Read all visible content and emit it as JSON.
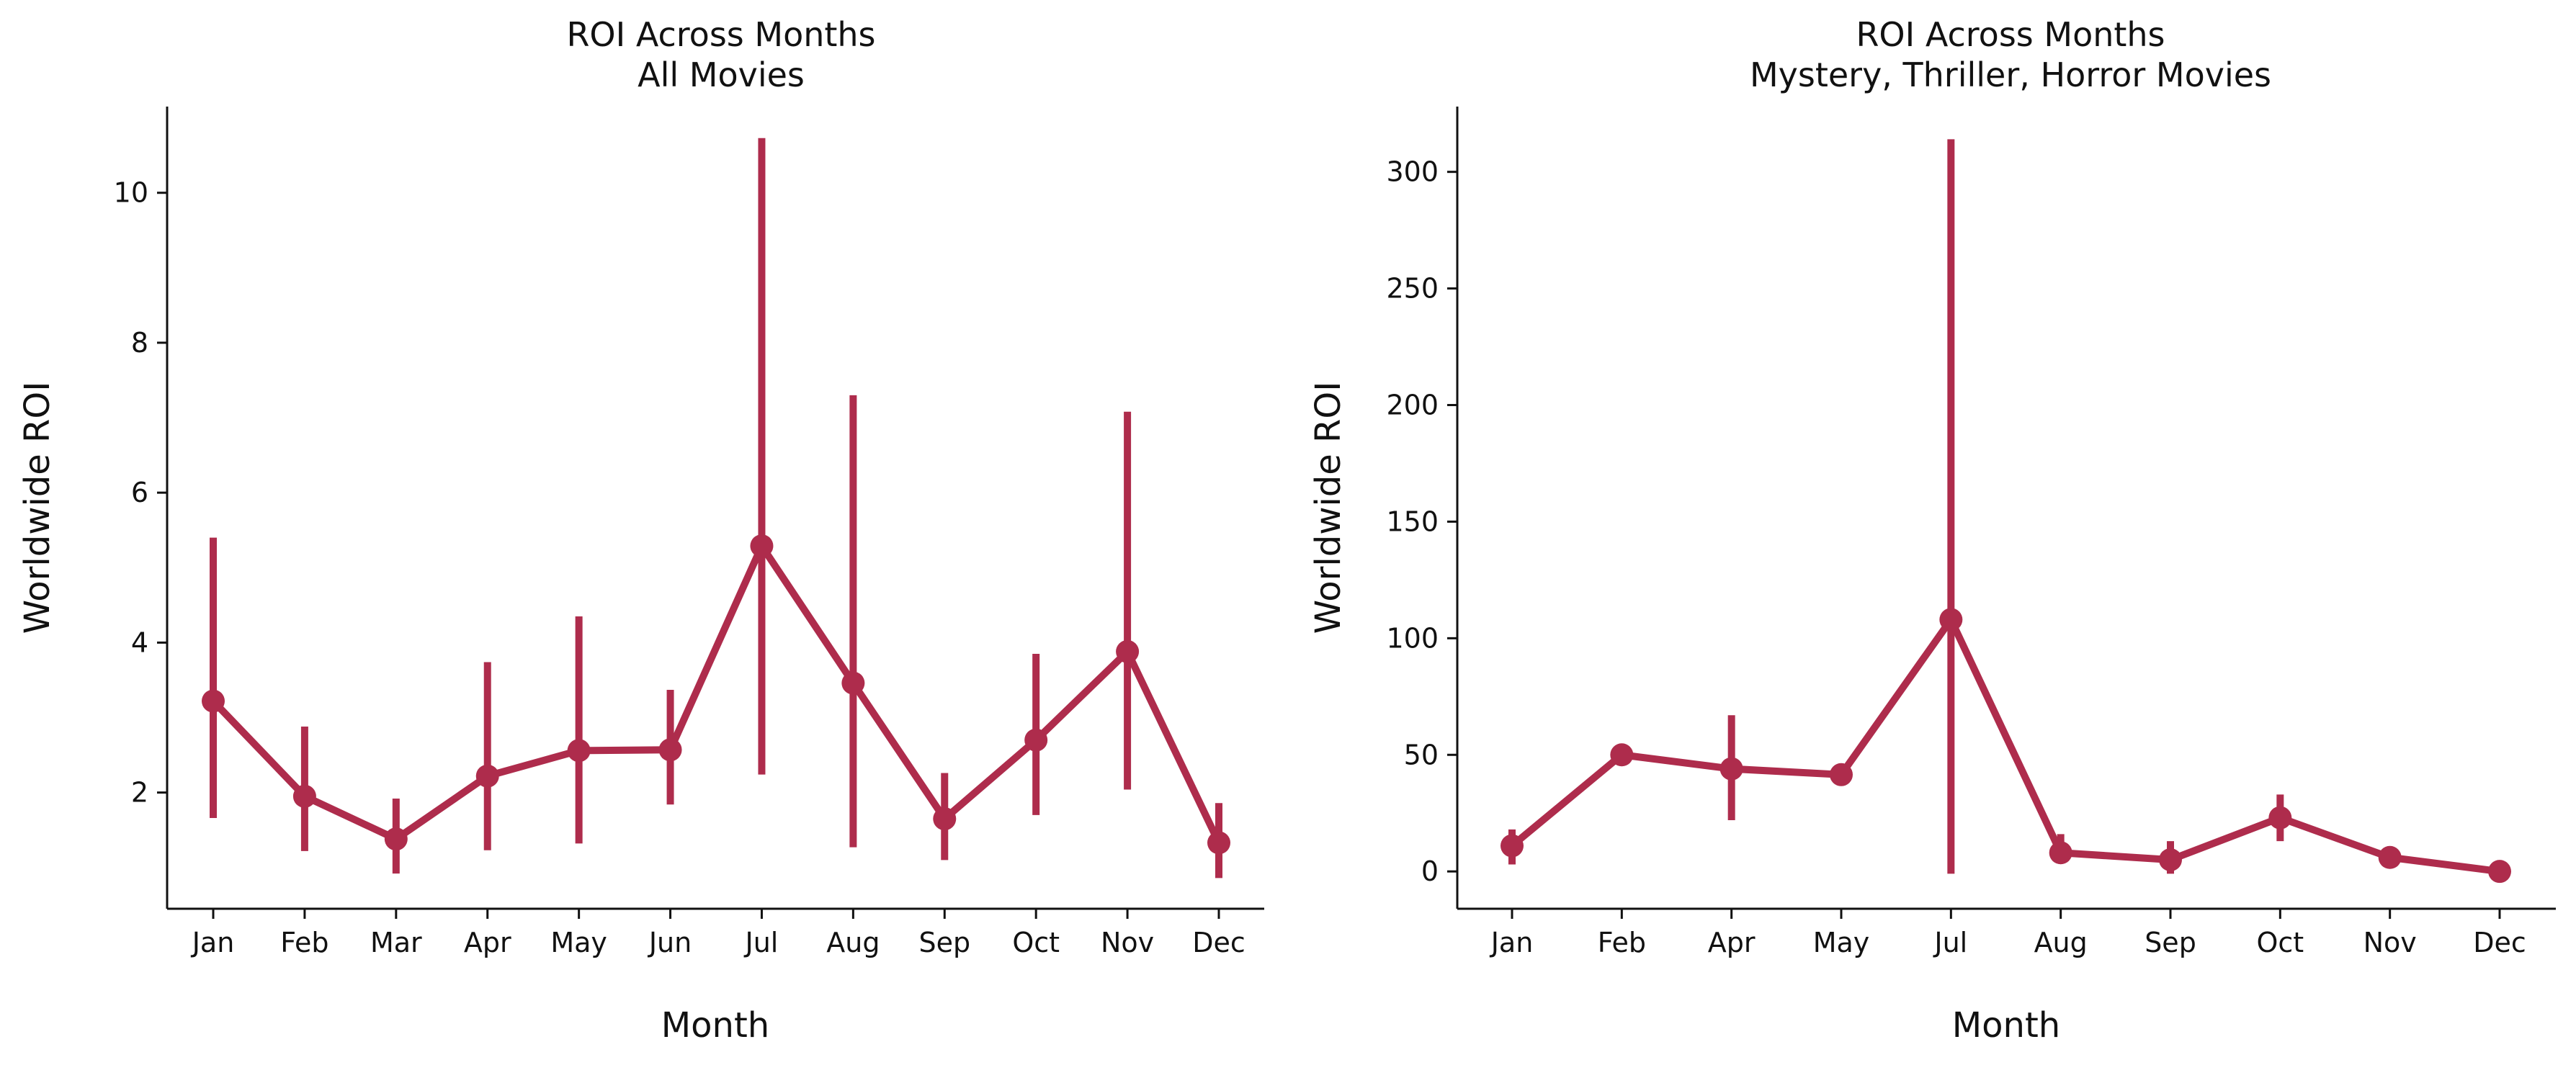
{
  "chart_data": [
    {
      "type": "line",
      "title": "ROI Across Months\nAll Movies",
      "xlabel": "Month",
      "ylabel": "Worldwide ROI",
      "categories": [
        "Jan",
        "Feb",
        "Mar",
        "Apr",
        "May",
        "Jun",
        "Jul",
        "Aug",
        "Sep",
        "Oct",
        "Nov",
        "Dec"
      ],
      "values": [
        3.22,
        1.95,
        1.38,
        2.22,
        2.56,
        2.57,
        5.29,
        3.46,
        1.65,
        2.7,
        3.88,
        1.33
      ],
      "error_low": [
        1.66,
        1.22,
        0.92,
        1.23,
        1.32,
        1.84,
        2.24,
        1.27,
        1.1,
        1.7,
        2.04,
        0.86
      ],
      "error_high": [
        5.4,
        2.88,
        1.92,
        3.74,
        4.35,
        3.37,
        10.73,
        7.3,
        2.26,
        3.85,
        7.08,
        1.86
      ],
      "yticks": [
        2,
        4,
        6,
        8,
        10
      ],
      "ylim": [
        0.45,
        11.15
      ],
      "grid": false,
      "color": "#ae2c4c"
    },
    {
      "type": "line",
      "title": "ROI Across Months\nMystery, Thriller, Horror Movies",
      "xlabel": "Month",
      "ylabel": "Worldwide ROI",
      "categories": [
        "Jan",
        "Feb",
        "Apr",
        "May",
        "Jul",
        "Aug",
        "Sep",
        "Oct",
        "Nov",
        "Dec"
      ],
      "values": [
        11,
        50,
        44,
        41.5,
        108,
        8,
        5,
        23,
        6,
        0
      ],
      "error_low": [
        3,
        50,
        22,
        41.5,
        -1,
        4,
        -1,
        13,
        6,
        0
      ],
      "error_high": [
        18,
        50,
        67,
        41.5,
        314,
        16,
        13,
        33,
        6,
        0
      ],
      "yticks": [
        0,
        50,
        100,
        150,
        200,
        250,
        300
      ],
      "ylim": [
        -16,
        328
      ],
      "grid": false,
      "color": "#ae2c4c"
    }
  ]
}
